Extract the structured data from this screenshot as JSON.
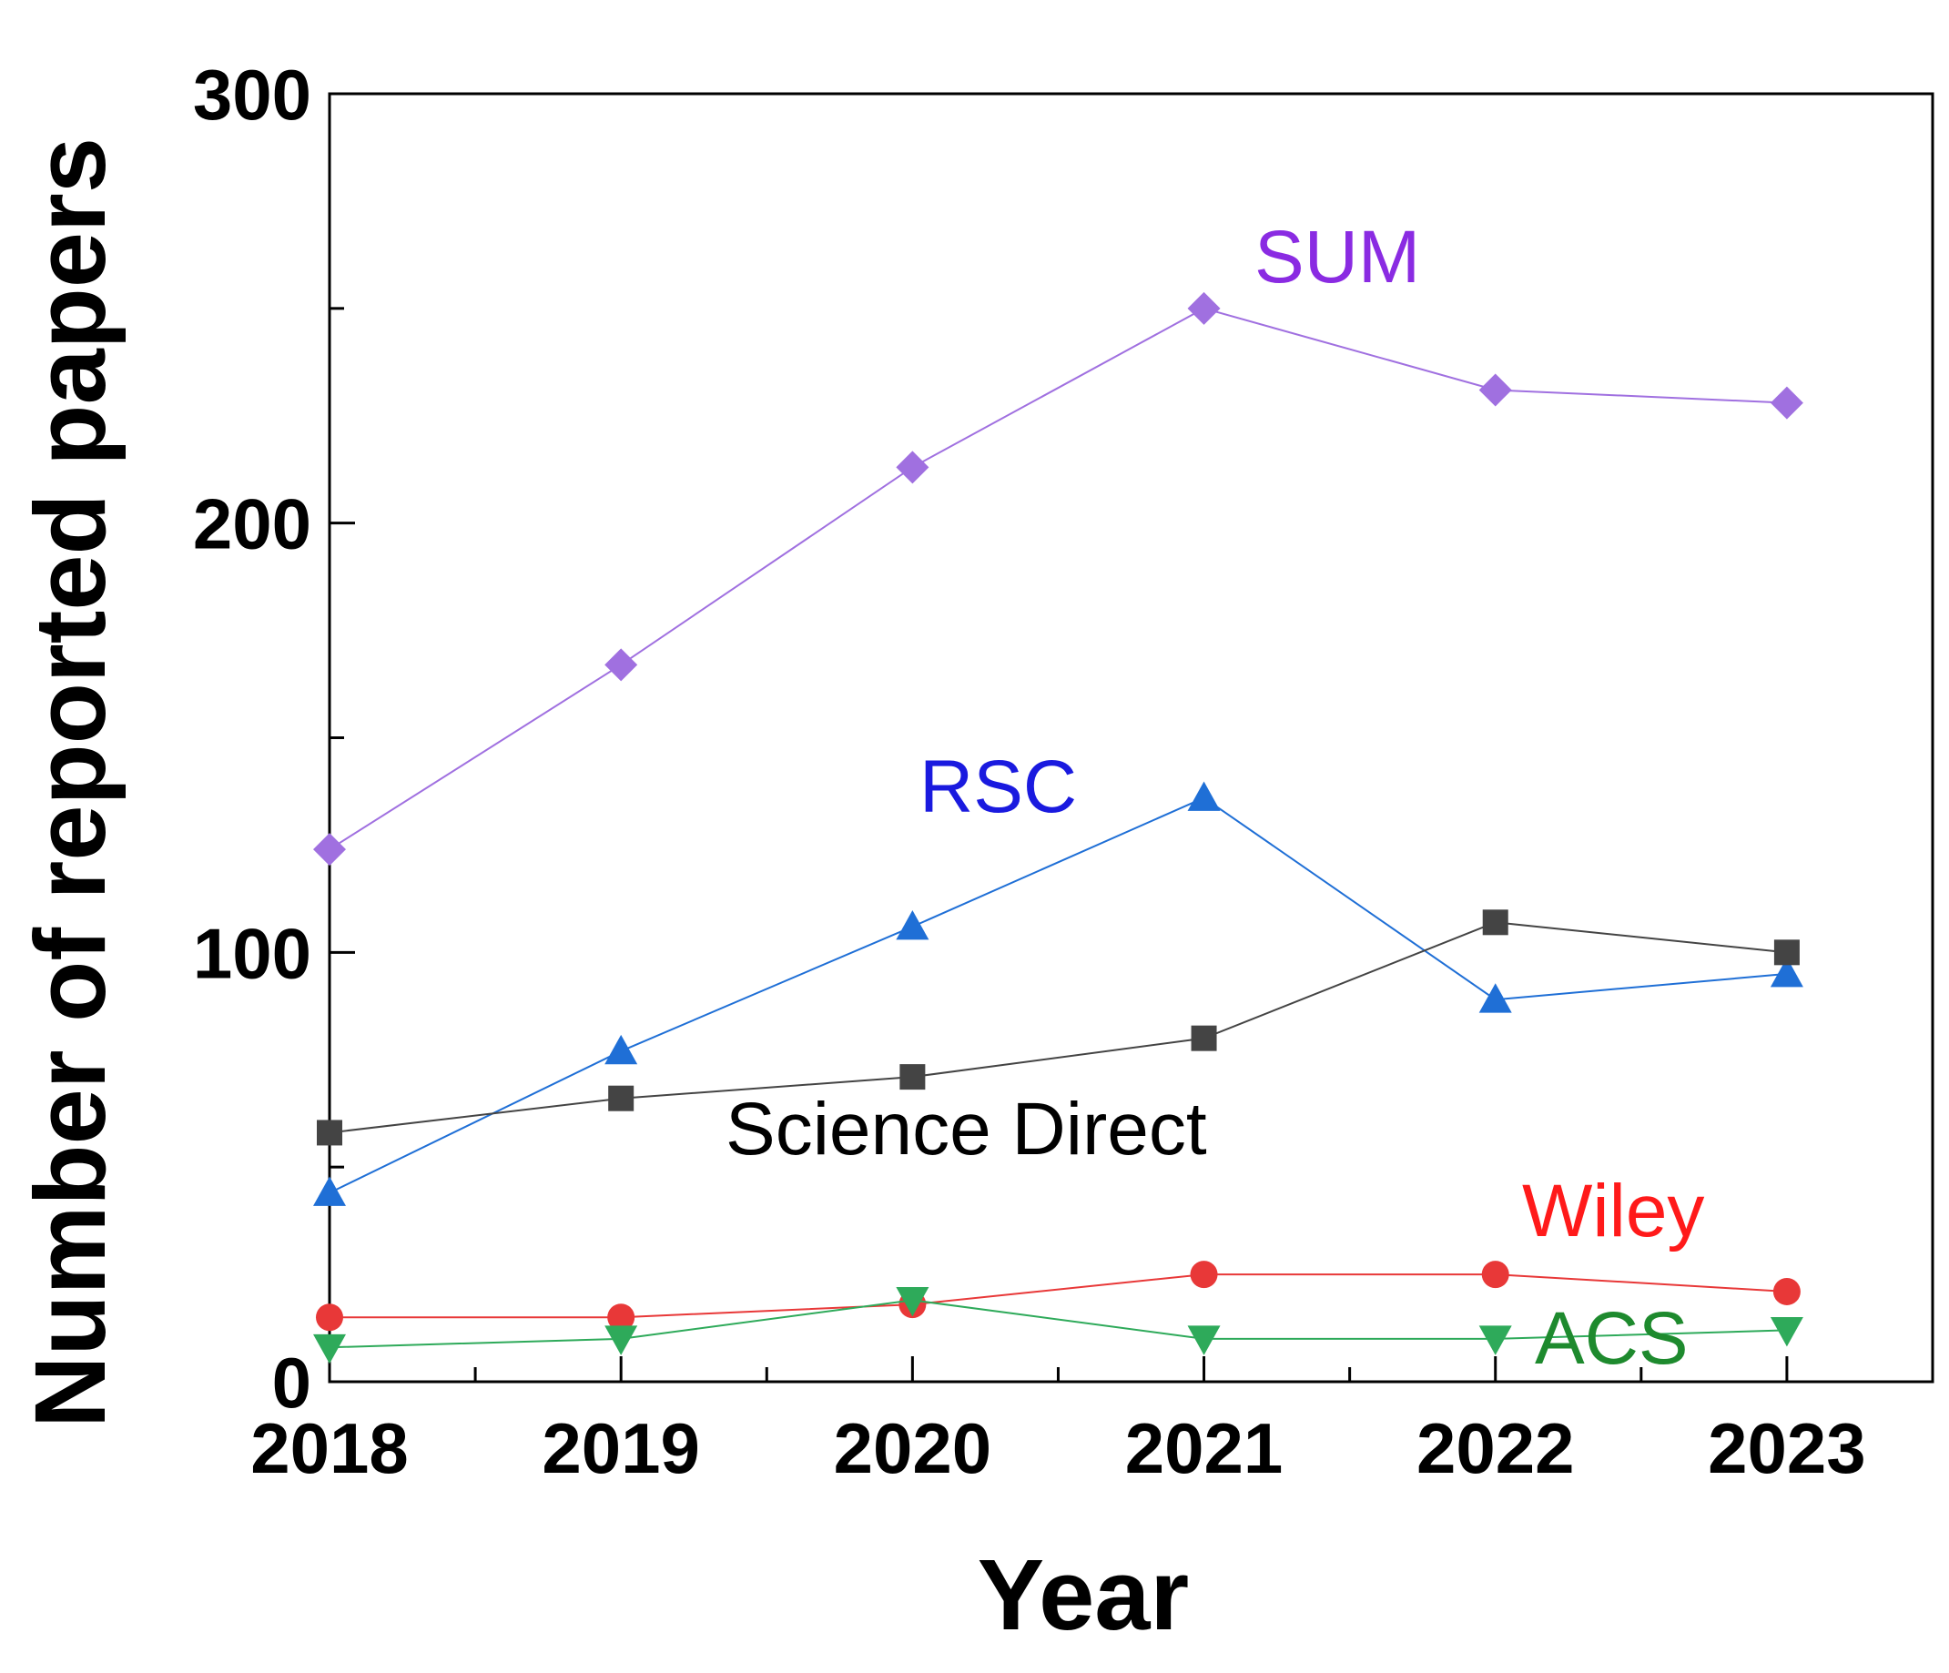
{
  "chart_data": {
    "type": "line",
    "title": "",
    "xlabel": "Year",
    "ylabel": "Number of reported papers",
    "x": [
      2018,
      2019,
      2020,
      2021,
      2022,
      2023
    ],
    "x_tick_labels": [
      "2018",
      "2019",
      "2020",
      "2021",
      "2022",
      "2023"
    ],
    "xlim": [
      2018,
      2023.5
    ],
    "ylim": [
      0,
      300
    ],
    "y_ticks": [
      0,
      100,
      200,
      300
    ],
    "y_tick_labels": [
      "0",
      "100",
      "200",
      "300"
    ],
    "grid": false,
    "series": [
      {
        "name": "SUM",
        "color": "#a070e0",
        "label_color": "#8a2be2",
        "marker": "diamond",
        "values": [
          124,
          167,
          213,
          250,
          231,
          228
        ]
      },
      {
        "name": "RSC",
        "color": "#1f6fd6",
        "label_color": "#1a1adf",
        "marker": "triangle-up",
        "values": [
          44,
          77,
          106,
          136,
          89,
          95
        ]
      },
      {
        "name": "Science Direct",
        "color": "#444444",
        "label_color": "#000000",
        "marker": "square",
        "values": [
          58,
          66,
          71,
          80,
          107,
          100
        ]
      },
      {
        "name": "Wiley",
        "color": "#e83838",
        "label_color": "#ff1a1a",
        "marker": "circle",
        "values": [
          15,
          15,
          18,
          25,
          25,
          21
        ]
      },
      {
        "name": "ACS",
        "color": "#2eaa5a",
        "label_color": "#1e8a2e",
        "marker": "triangle-down",
        "values": [
          8,
          10,
          19,
          10,
          10,
          12
        ]
      }
    ]
  }
}
